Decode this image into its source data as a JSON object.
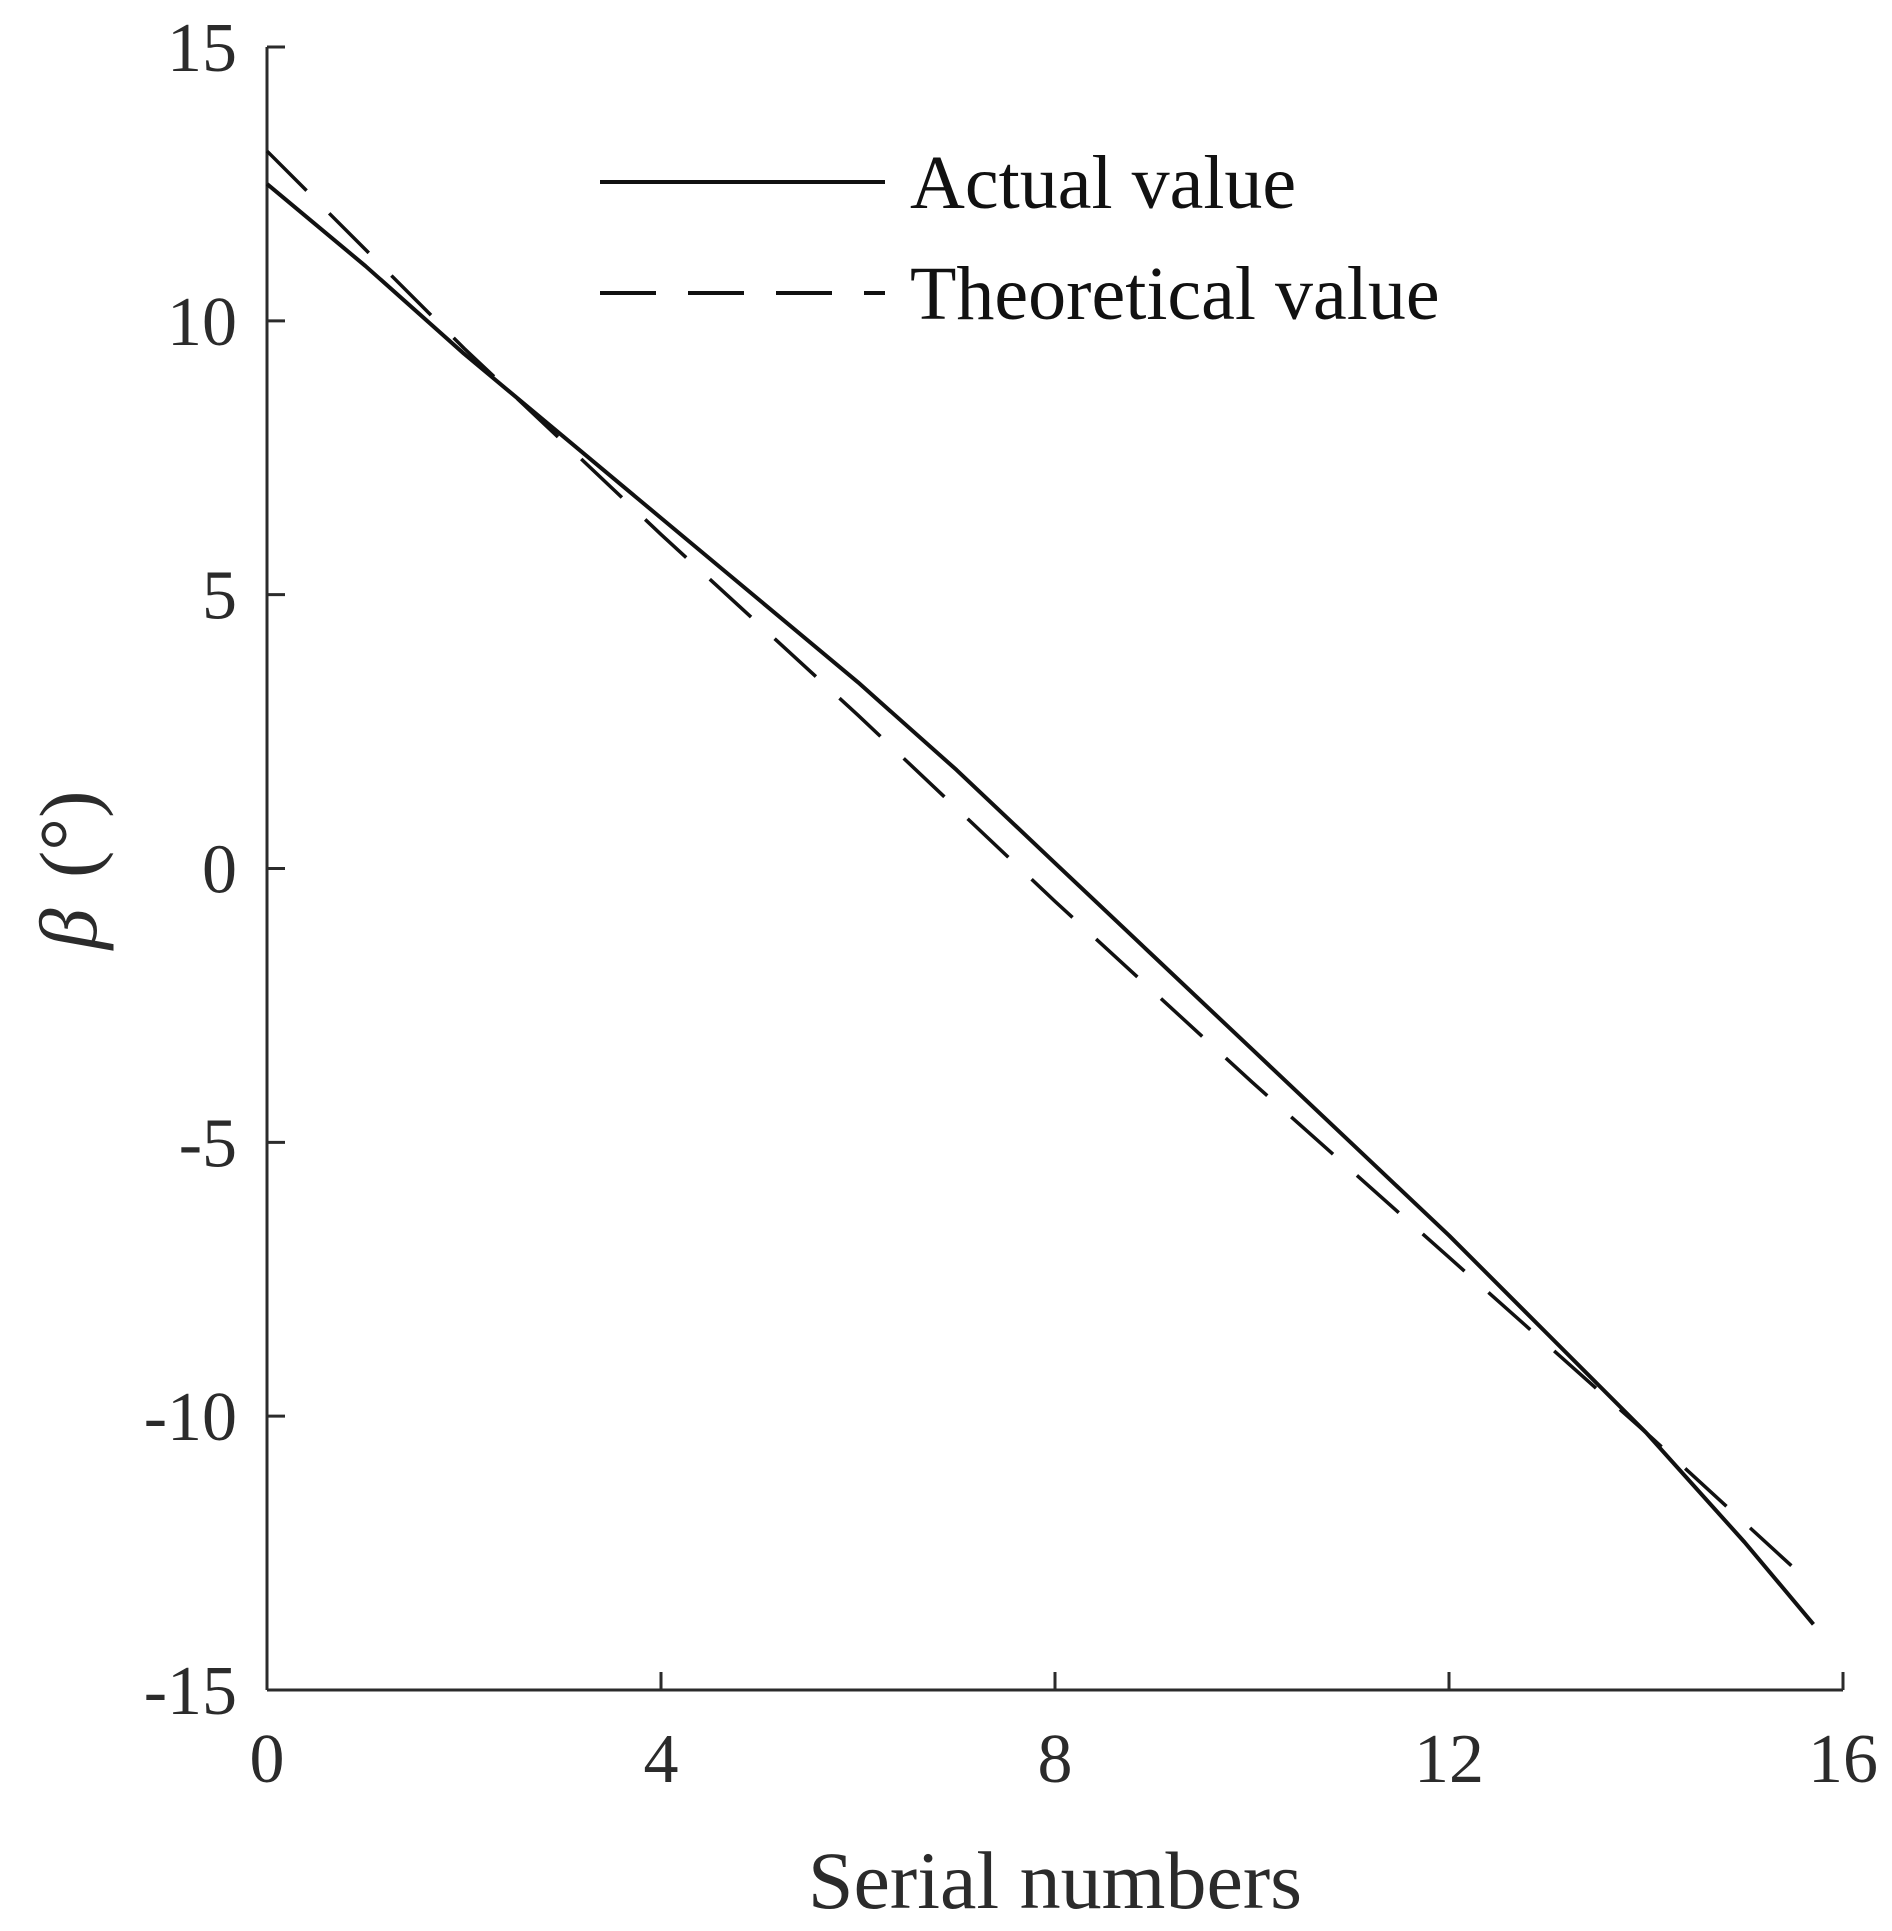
{
  "chart_data": {
    "type": "line",
    "title": "",
    "xlabel": "Serial numbers",
    "ylabel_symbol": "β",
    "ylabel_unit": "(°)",
    "xlim": [
      0,
      16
    ],
    "ylim": [
      -15,
      15
    ],
    "x_ticks": [
      0,
      4,
      8,
      12,
      16
    ],
    "y_ticks": [
      15,
      10,
      5,
      0,
      -5,
      -10,
      -15
    ],
    "x_tick_labels": [
      "0",
      "4",
      "8",
      "12",
      "16"
    ],
    "y_tick_labels": [
      "15",
      "10",
      "5",
      "0",
      "-5",
      "-10",
      "-15"
    ],
    "grid": false,
    "legend_position": "top-center",
    "series": [
      {
        "name": "Actual value",
        "style": "solid",
        "color": "#111111",
        "x": [
          0,
          1,
          2,
          3,
          4,
          5,
          6,
          7,
          8,
          9,
          10,
          11,
          12,
          13,
          14,
          15,
          15.7
        ],
        "y": [
          12.5,
          11.0,
          9.4,
          7.9,
          6.4,
          4.9,
          3.4,
          1.8,
          0.1,
          -1.6,
          -3.3,
          -5.0,
          -6.7,
          -8.5,
          -10.3,
          -12.3,
          -13.8
        ]
      },
      {
        "name": "Theoretical value",
        "style": "dashed",
        "color": "#111111",
        "x": [
          0,
          2,
          4,
          6,
          8,
          10,
          12,
          14,
          15.7
        ],
        "y": [
          13.1,
          9.5,
          6.1,
          2.8,
          -0.6,
          -3.9,
          -7.1,
          -10.3,
          -13.1
        ]
      }
    ]
  }
}
